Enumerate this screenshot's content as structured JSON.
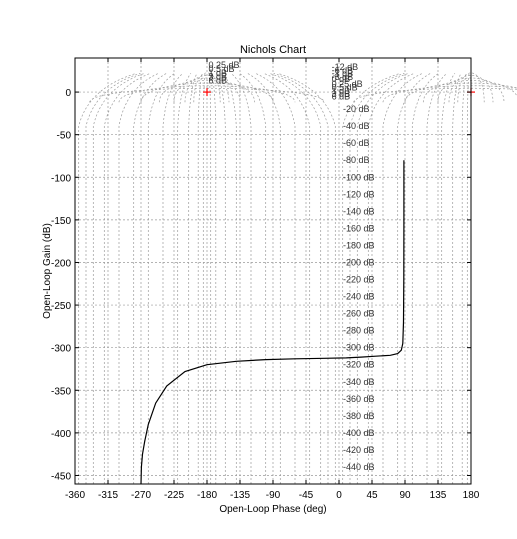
{
  "chart_data": {
    "type": "line",
    "title": "Nichols Chart",
    "xlabel": "Open-Loop Phase (deg)",
    "ylabel": "Open-Loop Gain (dB)",
    "xlim": [
      -360,
      180
    ],
    "ylim": [
      -460,
      40
    ],
    "xticks": [
      -360,
      -315,
      -270,
      -225,
      -180,
      -135,
      -90,
      -45,
      0,
      45,
      90,
      135,
      180
    ],
    "xtick_labels": [
      "-360",
      "-315",
      "-270",
      "-225",
      "-180",
      "-135",
      "-90",
      "-45",
      "0",
      "45",
      "90",
      "135",
      "180"
    ],
    "yticks": [
      0,
      -50,
      -100,
      -150,
      -200,
      -250,
      -300,
      -350,
      -400,
      -450
    ],
    "ytick_labels": [
      "0",
      "-50",
      "-100",
      "-150",
      "-200",
      "-250",
      "-300",
      "-350",
      "-400",
      "-450"
    ],
    "grid": true,
    "series": [
      {
        "x": [
          88.5,
          88.5,
          88.3,
          88.0,
          87.0,
          85.0,
          80.0,
          70.0,
          50.0,
          30.0,
          10.0,
          -20.0,
          -60.0,
          -100.0,
          -140.0,
          -180.0,
          -210.0,
          -235.0,
          -250.0,
          -260.0,
          -265.0,
          -268.0,
          -269.5,
          -270.0
        ],
        "y": [
          -80,
          -150,
          -220,
          -270,
          -295,
          -303,
          -307,
          -309,
          -310,
          -311,
          -312,
          -312.5,
          -313,
          -314,
          -316,
          -320,
          -328,
          -345,
          -365,
          -390,
          -410,
          -425,
          -440,
          -460
        ],
        "color": "#000000"
      }
    ],
    "critical_points": [
      {
        "x": -180,
        "y": 0,
        "color": "#ff0000"
      },
      {
        "x": 180,
        "y": 0,
        "color": "#ff0000"
      }
    ],
    "grid_labels_right": [
      "0 dB",
      "0.25 dB",
      "0.5 dB",
      "1 dB",
      "3 dB",
      "6 dB",
      "-1 dB",
      "-3 dB",
      "-6 dB",
      "-12 dB",
      "-20 dB",
      "-40 dB",
      "-60 dB",
      "-80 dB",
      "-100 dB",
      "-120 dB",
      "-140 dB",
      "-160 dB",
      "-180 dB",
      "-200 dB",
      "-220 dB",
      "-240 dB",
      "-260 dB",
      "-280 dB",
      "-300 dB",
      "-320 dB",
      "-340 dB",
      "-360 dB",
      "-380 dB",
      "-400 dB",
      "-420 dB",
      "-440 dB"
    ],
    "grid_labels_left": [
      "0.25 dB",
      "0.5 dB",
      "1 dB",
      "3 dB",
      "6 dB"
    ]
  }
}
